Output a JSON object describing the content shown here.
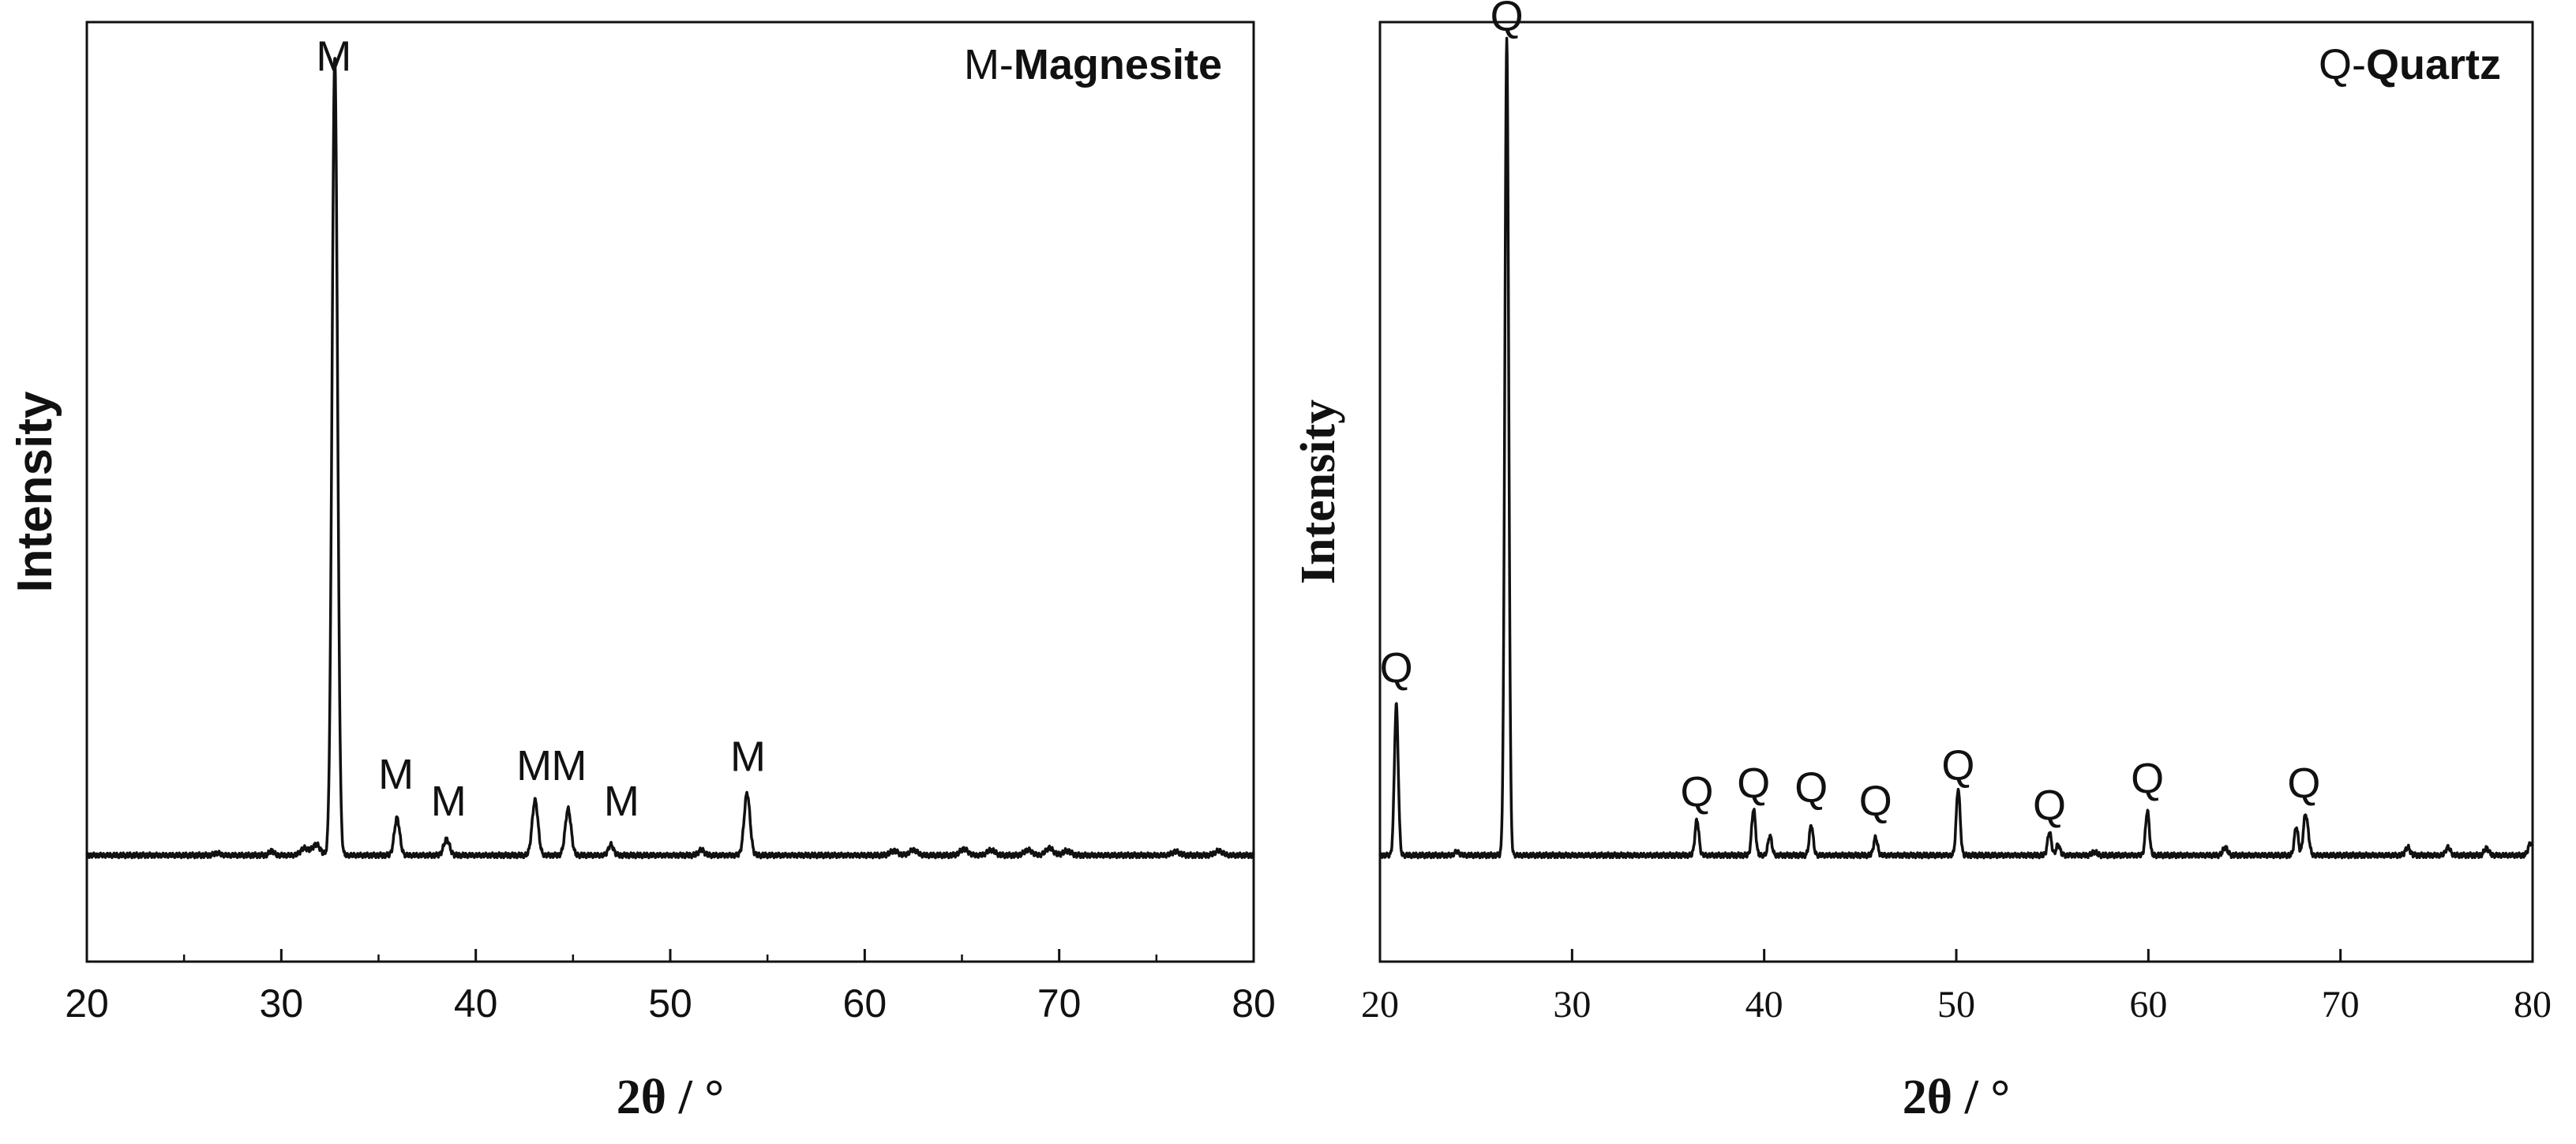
{
  "chart_data": [
    {
      "type": "line",
      "legend": {
        "prefix": "M-",
        "name": "Magnesite"
      },
      "xlabel": "2θ / °",
      "ylabel": "Intensity",
      "xlim": [
        20,
        80
      ],
      "ylim": [
        -6,
        100
      ],
      "xticks": [
        "20",
        "30",
        "40",
        "50",
        "60",
        "70",
        "80"
      ],
      "minor_xticks": [
        25,
        35,
        45,
        55,
        65,
        75
      ],
      "baseline": 6,
      "color": "#111111",
      "peaks": [
        {
          "x": 26.7,
          "y": 0.25,
          "w": 0.15
        },
        {
          "x": 29.5,
          "y": 0.5,
          "w": 0.12
        },
        {
          "x": 31.2,
          "y": 0.8,
          "w": 0.2
        },
        {
          "x": 31.8,
          "y": 1.2,
          "w": 0.2
        },
        {
          "x": 32.75,
          "y": 90,
          "w": 0.14
        },
        {
          "x": 35.95,
          "y": 4.2,
          "w": 0.14
        },
        {
          "x": 38.5,
          "y": 1.8,
          "w": 0.15
        },
        {
          "x": 43.05,
          "y": 6.2,
          "w": 0.15
        },
        {
          "x": 44.75,
          "y": 5.2,
          "w": 0.15
        },
        {
          "x": 46.95,
          "y": 1.2,
          "w": 0.13
        },
        {
          "x": 51.6,
          "y": 0.6,
          "w": 0.15
        },
        {
          "x": 53.95,
          "y": 7.0,
          "w": 0.15
        },
        {
          "x": 61.5,
          "y": 0.5,
          "w": 0.2
        },
        {
          "x": 62.5,
          "y": 0.6,
          "w": 0.2
        },
        {
          "x": 65.1,
          "y": 0.7,
          "w": 0.2
        },
        {
          "x": 66.5,
          "y": 0.6,
          "w": 0.2
        },
        {
          "x": 68.4,
          "y": 0.6,
          "w": 0.2
        },
        {
          "x": 69.5,
          "y": 0.8,
          "w": 0.2
        },
        {
          "x": 70.4,
          "y": 0.5,
          "w": 0.2
        },
        {
          "x": 76.0,
          "y": 0.4,
          "w": 0.2
        },
        {
          "x": 78.2,
          "y": 0.5,
          "w": 0.2
        }
      ],
      "annotations": [
        {
          "text": "M",
          "x": 32.7,
          "y": 94.5
        },
        {
          "text": "M",
          "x": 35.9,
          "y": 13.5
        },
        {
          "text": "M",
          "x": 38.6,
          "y": 10.5
        },
        {
          "text": "M",
          "x": 43.0,
          "y": 14.5
        },
        {
          "text": "M",
          "x": 44.8,
          "y": 14.5
        },
        {
          "text": "M",
          "x": 47.5,
          "y": 10.5
        },
        {
          "text": "M",
          "x": 54.0,
          "y": 15.5
        }
      ]
    },
    {
      "type": "line",
      "legend": {
        "prefix": "Q-",
        "name": "Quartz"
      },
      "xlabel": "2θ / °",
      "ylabel": "Intensity",
      "xlim": [
        20,
        80
      ],
      "ylim": [
        -6,
        100
      ],
      "xticks": [
        "20",
        "30",
        "40",
        "50",
        "60",
        "70",
        "80"
      ],
      "minor_xticks": [],
      "baseline": 6,
      "color": "#111111",
      "peaks": [
        {
          "x": 20.85,
          "y": 17,
          "w": 0.1
        },
        {
          "x": 24.0,
          "y": 0.4,
          "w": 0.12
        },
        {
          "x": 26.6,
          "y": 92,
          "w": 0.1
        },
        {
          "x": 36.5,
          "y": 4.0,
          "w": 0.1
        },
        {
          "x": 39.45,
          "y": 5.2,
          "w": 0.1
        },
        {
          "x": 40.3,
          "y": 2.2,
          "w": 0.1
        },
        {
          "x": 42.45,
          "y": 3.4,
          "w": 0.1
        },
        {
          "x": 45.8,
          "y": 2.0,
          "w": 0.1
        },
        {
          "x": 50.1,
          "y": 7.5,
          "w": 0.1
        },
        {
          "x": 54.85,
          "y": 2.6,
          "w": 0.1
        },
        {
          "x": 55.3,
          "y": 1.2,
          "w": 0.1
        },
        {
          "x": 57.2,
          "y": 0.4,
          "w": 0.12
        },
        {
          "x": 59.95,
          "y": 5.0,
          "w": 0.1
        },
        {
          "x": 64.0,
          "y": 0.9,
          "w": 0.12
        },
        {
          "x": 67.7,
          "y": 3.2,
          "w": 0.1
        },
        {
          "x": 68.15,
          "y": 3.8,
          "w": 0.1
        },
        {
          "x": 68.3,
          "y": 2.0,
          "w": 0.1
        },
        {
          "x": 73.5,
          "y": 0.9,
          "w": 0.12
        },
        {
          "x": 75.6,
          "y": 0.9,
          "w": 0.12
        },
        {
          "x": 77.6,
          "y": 0.8,
          "w": 0.12
        },
        {
          "x": 79.9,
          "y": 1.4,
          "w": 0.12
        }
      ],
      "annotations": [
        {
          "text": "Q",
          "x": 20.85,
          "y": 25.5
        },
        {
          "text": "Q",
          "x": 26.6,
          "y": 99
        },
        {
          "text": "Q",
          "x": 36.5,
          "y": 11.5
        },
        {
          "text": "Q",
          "x": 39.45,
          "y": 12.5
        },
        {
          "text": "Q",
          "x": 42.45,
          "y": 12.0
        },
        {
          "text": "Q",
          "x": 45.8,
          "y": 10.5
        },
        {
          "text": "Q",
          "x": 50.1,
          "y": 14.5
        },
        {
          "text": "Q",
          "x": 54.85,
          "y": 10.0
        },
        {
          "text": "Q",
          "x": 59.95,
          "y": 13.0
        },
        {
          "text": "Q",
          "x": 68.1,
          "y": 12.5
        }
      ]
    }
  ]
}
